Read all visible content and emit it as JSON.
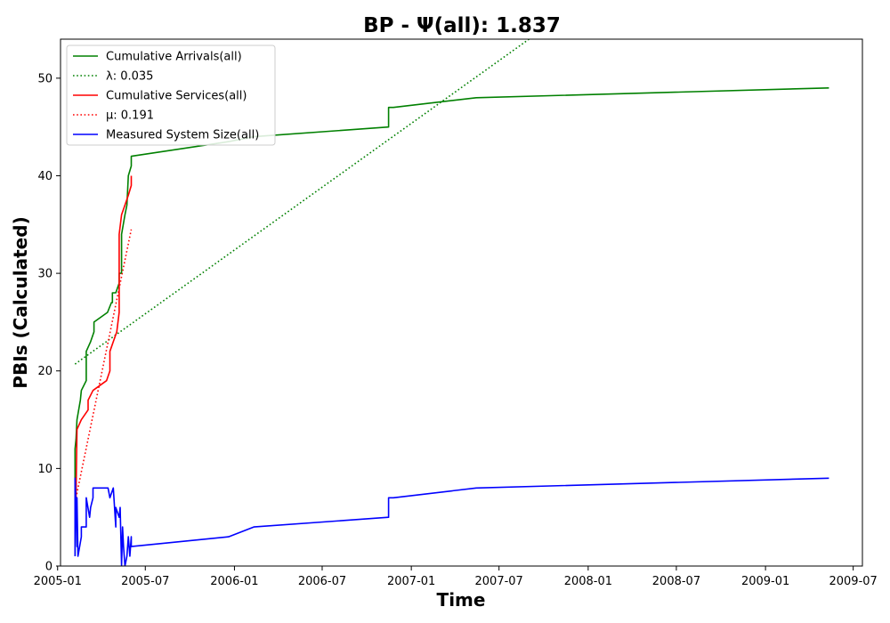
{
  "chart_data": {
    "type": "line",
    "title": "BP -  Ψ(all): 1.837",
    "xlabel": "Time",
    "ylabel": "PBIs (Calculated)",
    "xlim": [
      "2005-01-07",
      "2009-07-20"
    ],
    "ylim": [
      0,
      54
    ],
    "grid": false,
    "legend_position": "top-left",
    "x_ticks": [
      "2005-01",
      "2005-07",
      "2006-01",
      "2006-07",
      "2007-01",
      "2007-07",
      "2008-01",
      "2008-07",
      "2009-01",
      "2009-07"
    ],
    "y_ticks": [
      0,
      10,
      20,
      30,
      40,
      50
    ],
    "series": [
      {
        "name": "Cumulative Arrivals(all)",
        "color": "#008000",
        "style": "solid",
        "points": [
          [
            "2005-02-06",
            1
          ],
          [
            "2005-02-06",
            12
          ],
          [
            "2005-02-08",
            13
          ],
          [
            "2005-02-10",
            15
          ],
          [
            "2005-02-17",
            17
          ],
          [
            "2005-02-19",
            18
          ],
          [
            "2005-03-01",
            19
          ],
          [
            "2005-03-01",
            22
          ],
          [
            "2005-03-10",
            23
          ],
          [
            "2005-03-17",
            24
          ],
          [
            "2005-03-17",
            25
          ],
          [
            "2005-04-14",
            26
          ],
          [
            "2005-04-22",
            27
          ],
          [
            "2005-04-24",
            27
          ],
          [
            "2005-04-24",
            28
          ],
          [
            "2005-05-01",
            28
          ],
          [
            "2005-05-08",
            29
          ],
          [
            "2005-05-08",
            30
          ],
          [
            "2005-05-13",
            30
          ],
          [
            "2005-05-13",
            34
          ],
          [
            "2005-05-20",
            36
          ],
          [
            "2005-05-24",
            37
          ],
          [
            "2005-05-27",
            40
          ],
          [
            "2005-06-02",
            41
          ],
          [
            "2005-06-02",
            42
          ],
          [
            "2005-12-20",
            43.5
          ],
          [
            "2006-02-10",
            44
          ],
          [
            "2006-11-15",
            45
          ],
          [
            "2006-11-15",
            47
          ],
          [
            "2006-11-25",
            47
          ],
          [
            "2007-05-15",
            48
          ],
          [
            "2009-05-12",
            49
          ]
        ]
      },
      {
        "name": "λ: 0.035",
        "color": "#008000",
        "style": "dotted",
        "points": [
          [
            "2005-02-06",
            20.7
          ],
          [
            "2007-09-01",
            54
          ]
        ]
      },
      {
        "name": "Cumulative Services(all)",
        "color": "#ff0000",
        "style": "solid",
        "points": [
          [
            "2005-02-08",
            5
          ],
          [
            "2005-02-08",
            7
          ],
          [
            "2005-02-10",
            14
          ],
          [
            "2005-02-19",
            15
          ],
          [
            "2005-03-05",
            16
          ],
          [
            "2005-03-05",
            17
          ],
          [
            "2005-03-15",
            18
          ],
          [
            "2005-04-12",
            19
          ],
          [
            "2005-04-19",
            20
          ],
          [
            "2005-04-19",
            22
          ],
          [
            "2005-04-26",
            23
          ],
          [
            "2005-05-03",
            24
          ],
          [
            "2005-05-08",
            26
          ],
          [
            "2005-05-08",
            34
          ],
          [
            "2005-05-13",
            36
          ],
          [
            "2005-05-20",
            37
          ],
          [
            "2005-05-27",
            38
          ],
          [
            "2005-06-02",
            39
          ],
          [
            "2005-06-02",
            40
          ]
        ]
      },
      {
        "name": "μ: 0.191",
        "color": "#ff0000",
        "style": "dotted",
        "points": [
          [
            "2005-02-08",
            7
          ],
          [
            "2005-06-02",
            34.5
          ]
        ]
      },
      {
        "name": "Measured System Size(all)",
        "color": "#0000ff",
        "style": "solid",
        "points": [
          [
            "2005-02-06",
            1
          ],
          [
            "2005-02-06",
            9
          ],
          [
            "2005-02-08",
            6
          ],
          [
            "2005-02-10",
            2
          ],
          [
            "2005-02-10",
            7
          ],
          [
            "2005-02-12",
            1
          ],
          [
            "2005-02-19",
            3
          ],
          [
            "2005-02-19",
            4
          ],
          [
            "2005-03-01",
            4
          ],
          [
            "2005-03-01",
            7
          ],
          [
            "2005-03-08",
            5
          ],
          [
            "2005-03-10",
            6
          ],
          [
            "2005-03-15",
            7
          ],
          [
            "2005-03-15",
            8
          ],
          [
            "2005-04-15",
            8
          ],
          [
            "2005-04-19",
            7
          ],
          [
            "2005-04-26",
            8
          ],
          [
            "2005-05-01",
            4
          ],
          [
            "2005-05-01",
            6
          ],
          [
            "2005-05-08",
            5
          ],
          [
            "2005-05-10",
            6
          ],
          [
            "2005-05-13",
            0
          ],
          [
            "2005-05-15",
            4
          ],
          [
            "2005-05-17",
            2
          ],
          [
            "2005-05-20",
            0
          ],
          [
            "2005-05-24",
            1
          ],
          [
            "2005-05-27",
            3
          ],
          [
            "2005-05-30",
            1
          ],
          [
            "2005-06-02",
            3
          ],
          [
            "2005-06-02",
            2
          ],
          [
            "2005-12-20",
            3
          ],
          [
            "2006-02-10",
            4
          ],
          [
            "2006-11-15",
            5
          ],
          [
            "2006-11-15",
            7
          ],
          [
            "2006-11-25",
            7
          ],
          [
            "2007-05-15",
            8
          ],
          [
            "2009-05-12",
            9
          ]
        ]
      }
    ]
  }
}
